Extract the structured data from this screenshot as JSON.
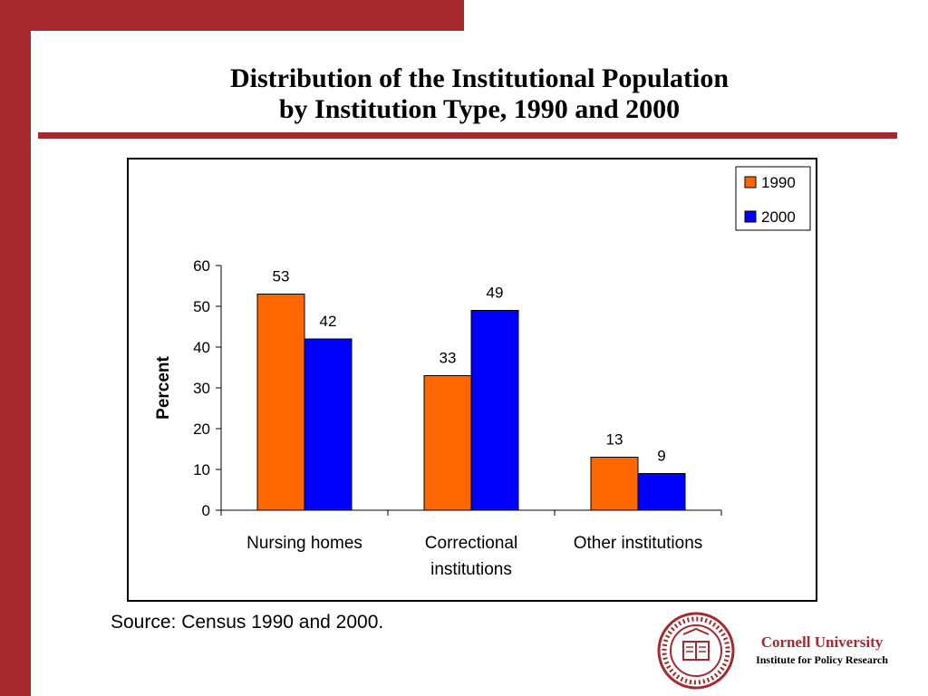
{
  "slide": {
    "title_line1": "Distribution of the Institutional Population",
    "title_line2": "by Institution Type, 1990 and 2000",
    "source": "Source: Census 1990 and 2000."
  },
  "logo": {
    "name": "Cornell University",
    "subtitle": "Institute for Policy Research",
    "seal_text": "CORNELL UNIVERSITY · FOUNDED A.D. 1865"
  },
  "colors": {
    "accent": "#a52a2e",
    "series_1990": "#ff6600",
    "series_2000": "#0000ff"
  },
  "chart_data": {
    "type": "bar",
    "categories": [
      "Nursing homes",
      "Correctional institutions",
      "Other institutions"
    ],
    "category_label_lines": [
      [
        "Nursing homes"
      ],
      [
        "Correctional",
        "institutions"
      ],
      [
        "Other institutions"
      ]
    ],
    "series": [
      {
        "name": "1990",
        "values": [
          53,
          33,
          13
        ]
      },
      {
        "name": "2000",
        "values": [
          42,
          49,
          9
        ]
      }
    ],
    "ylabel": "Percent",
    "xlabel": "",
    "ylim": [
      0,
      60
    ],
    "yticks": [
      0,
      10,
      20,
      30,
      40,
      50,
      60
    ],
    "grid": false,
    "legend_position": "top-right",
    "data_labels": true
  }
}
